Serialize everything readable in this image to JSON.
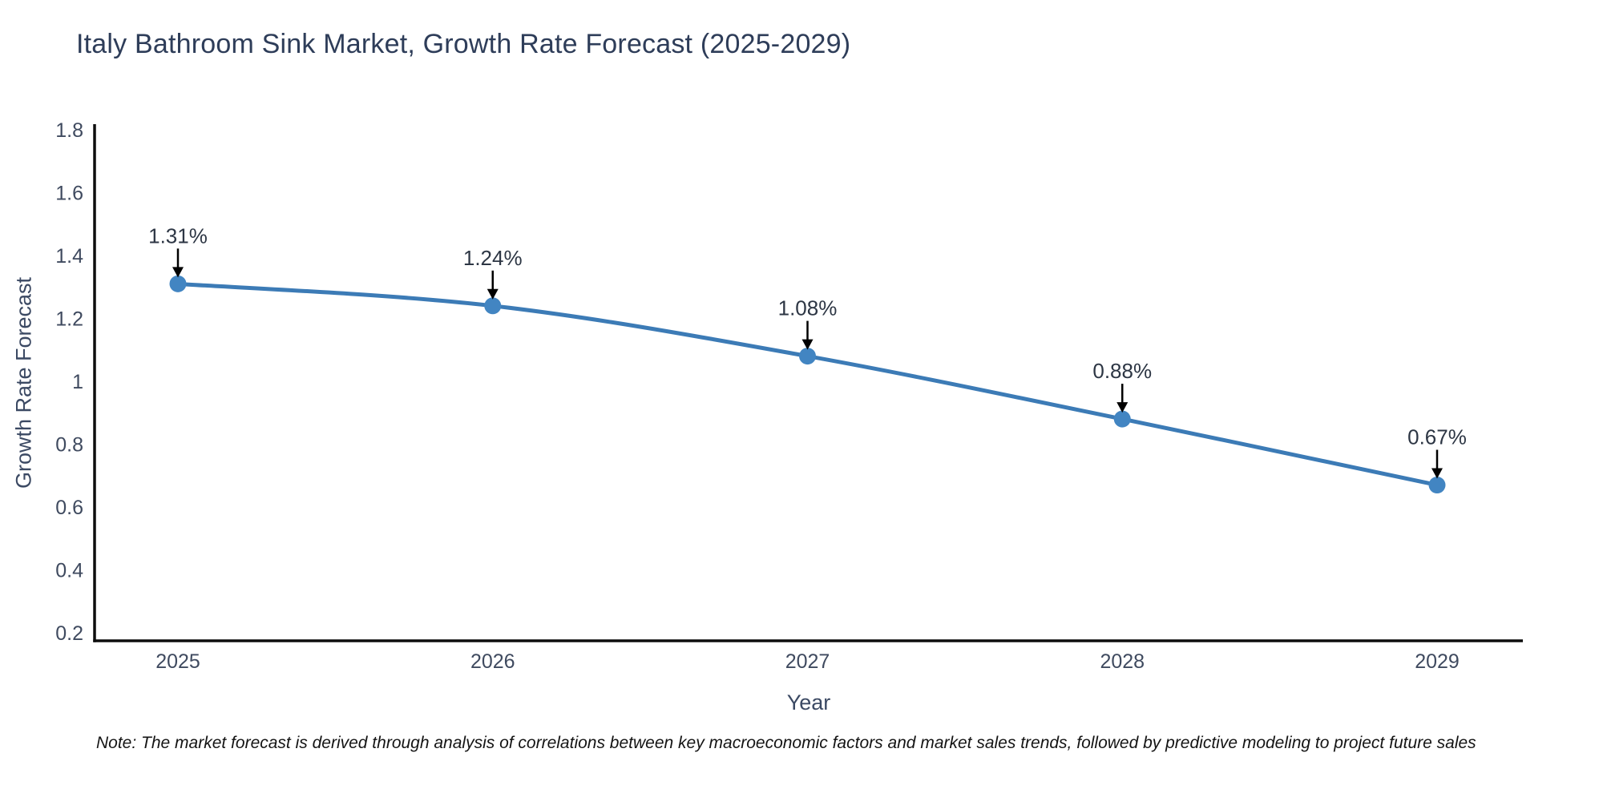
{
  "title": "Italy Bathroom Sink Market, Growth Rate Forecast (2025-2029)",
  "note": "Note: The market forecast is derived through analysis of correlations between key macroeconomic factors and market sales trends, followed by predictive modeling to project future sales",
  "chart_data": {
    "type": "line",
    "x": [
      2025,
      2026,
      2027,
      2028,
      2029
    ],
    "xtick_labels": [
      "2025",
      "2026",
      "2027",
      "2028",
      "2029"
    ],
    "series": [
      {
        "name": "Growth Rate Forecast",
        "values": [
          1.31,
          1.24,
          1.08,
          0.88,
          0.67
        ]
      }
    ],
    "point_labels": [
      "1.31%",
      "1.24%",
      "1.08%",
      "0.88%",
      "0.67%"
    ],
    "title": "Italy Bathroom Sink Market, Growth Rate Forecast (2025-2029)",
    "xlabel": "Year",
    "ylabel": "Growth Rate Forecast",
    "ylim": [
      0.2,
      1.8
    ],
    "yticks": [
      0.2,
      0.4,
      0.6,
      0.8,
      1,
      1.2,
      1.4,
      1.6,
      1.8
    ],
    "ytick_labels": [
      "0.2",
      "0.4",
      "0.6",
      "0.8",
      "1",
      "1.2",
      "1.4",
      "1.6",
      "1.8"
    ],
    "grid": false,
    "legend_position": "none",
    "annotation_style": "label-above-with-down-arrow",
    "colors": {
      "line": "#3c7bb6",
      "marker": "#4285c2",
      "axis": "#0d0d0d",
      "title": "#2e3d59",
      "tick_label": "#3f4a5f",
      "annotation_text": "#2d3644",
      "annotation_arrow": "#000000",
      "note_text": "#141414"
    }
  }
}
